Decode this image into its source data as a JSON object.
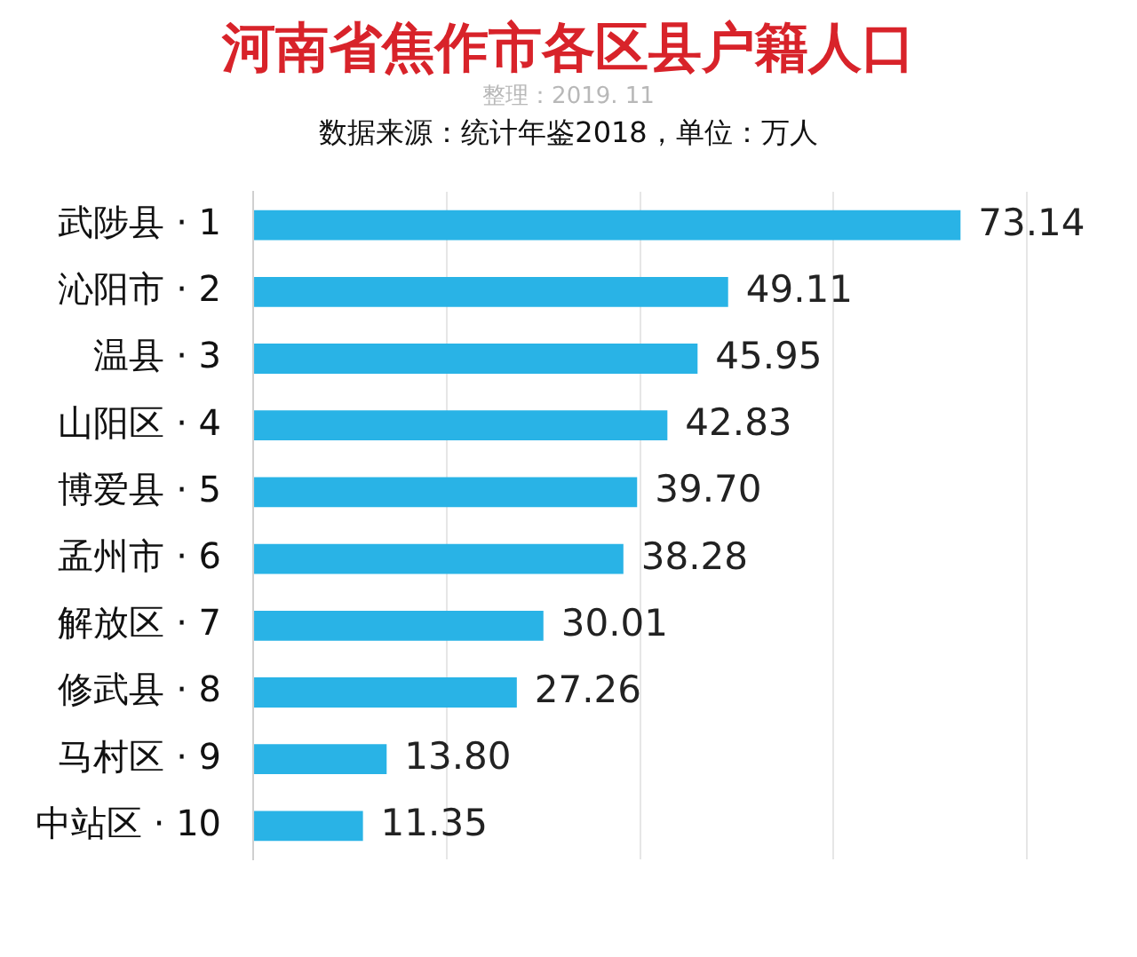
{
  "chart_data": {
    "type": "bar",
    "orientation": "horizontal",
    "title": "河南省焦作市各区县户籍人口",
    "subtitle": "整理：2019. 11",
    "annotations": [
      "数据来源：统计年鉴2018，单位：万人"
    ],
    "categories": [
      "武陟县 · 1",
      "沁阳市 · 2",
      "温县 · 3",
      "山阳区 · 4",
      "博爱县 · 5",
      "孟州市 · 6",
      "解放区 · 7",
      "修武县 · 8",
      "马村区 · 9",
      "中站区 · 10"
    ],
    "values": [
      73.14,
      49.11,
      45.95,
      42.83,
      39.7,
      38.28,
      30.01,
      27.26,
      13.8,
      11.35
    ],
    "value_labels": [
      "73.14",
      "49.11",
      "45.95",
      "42.83",
      "39.70",
      "38.28",
      "30.01",
      "27.26",
      "13.80",
      "11.35"
    ],
    "color": "#29b3e6",
    "xlim": [
      0,
      80
    ],
    "xticks": [
      {
        "value": 0,
        "label": null
      },
      {
        "value": 20,
        "label": null
      },
      {
        "value": 40,
        "label": null
      },
      {
        "value": 60,
        "label": null
      },
      {
        "value": 80,
        "label": null
      }
    ],
    "grid": "x",
    "tick_labels": "y",
    "legend": false
  }
}
